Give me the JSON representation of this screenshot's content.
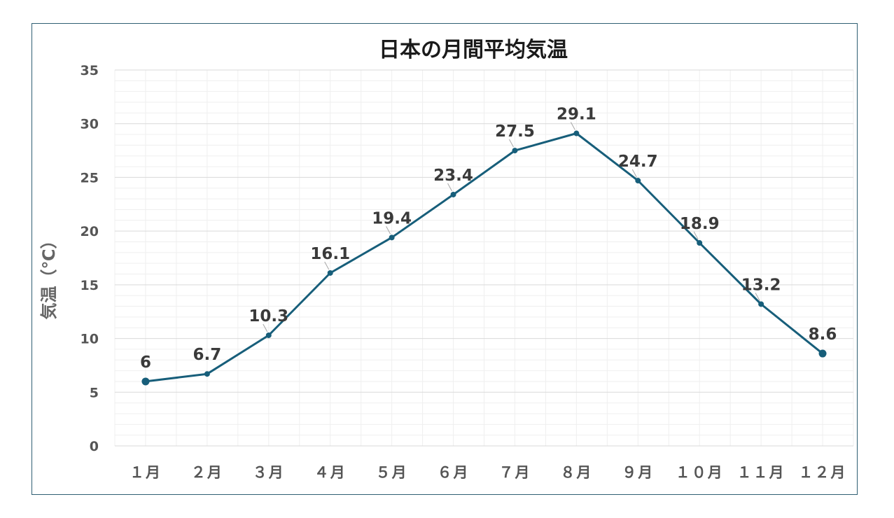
{
  "chart_data": {
    "type": "line",
    "title": "日本の月間平均気温",
    "ylabel": "気温（℃）",
    "xlabel": "",
    "categories": [
      "１月",
      "２月",
      "３月",
      "４月",
      "５月",
      "６月",
      "７月",
      "８月",
      "９月",
      "１０月",
      "１１月",
      "１２月"
    ],
    "series": [
      {
        "values": [
          6,
          6.7,
          10.3,
          16.1,
          19.4,
          23.4,
          27.5,
          29.1,
          24.7,
          18.9,
          13.2,
          8.6
        ],
        "color": "#175e7a"
      }
    ],
    "data_labels": [
      "6",
      "6.7",
      "10.3",
      "16.1",
      "19.4",
      "23.4",
      "27.5",
      "29.1",
      "24.7",
      "18.9",
      "13.2",
      "8.6"
    ],
    "ylim": [
      0,
      35
    ],
    "yticks": [
      "0",
      "5",
      "10",
      "15",
      "20",
      "25",
      "30",
      "35"
    ],
    "grid": true,
    "legend": "none"
  }
}
